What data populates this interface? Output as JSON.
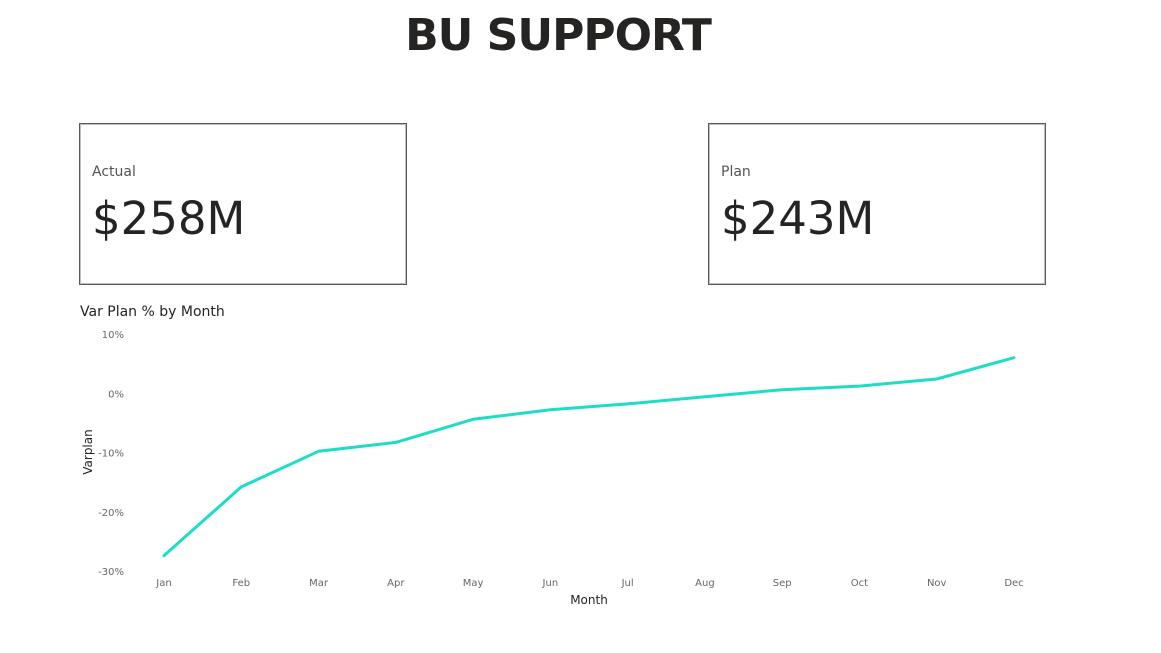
{
  "page": {
    "title": "BU SUPPORT"
  },
  "cards": {
    "actual": {
      "label": "Actual",
      "value": "$258M"
    },
    "plan": {
      "label": "Plan",
      "value": "$243M"
    }
  },
  "colors": {
    "line": "#1fdcc6",
    "card_border": "#5a5a5a",
    "text": "#252423"
  },
  "chart_data": {
    "type": "line",
    "title": "Var Plan % by Month",
    "xlabel": "Month",
    "ylabel": "Varplan",
    "categories": [
      "Jan",
      "Feb",
      "Mar",
      "Apr",
      "May",
      "Jun",
      "Jul",
      "Aug",
      "Sep",
      "Oct",
      "Nov",
      "Dec"
    ],
    "values": [
      -27.4,
      -15.8,
      -9.8,
      -8.3,
      -4.4,
      -2.8,
      -1.8,
      -0.6,
      0.6,
      1.2,
      2.4,
      6.0
    ],
    "y_ticks": [
      "10%",
      "0%",
      "-10%",
      "-20%",
      "-30%"
    ],
    "y_tick_values": [
      10,
      0,
      -10,
      -20,
      -30
    ],
    "ylim": [
      -30,
      10
    ],
    "grid": false,
    "legend": "none"
  }
}
